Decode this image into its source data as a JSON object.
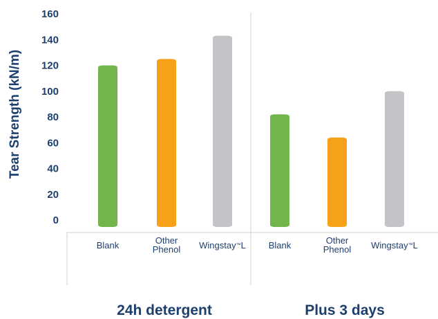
{
  "chart_data": {
    "type": "bar",
    "ylabel": "Tear Strength (kN/m)",
    "ylim": [
      0,
      160
    ],
    "yticks": [
      0,
      20,
      40,
      60,
      80,
      100,
      120,
      140,
      160
    ],
    "grid": false,
    "groups": [
      {
        "label": "24h detergent",
        "bars": [
          {
            "label": "Blank",
            "value": 120,
            "color": "#72b54b"
          },
          {
            "label": "Other\nPhenol",
            "value": 125,
            "color": "#f7a11a"
          },
          {
            "label": "Wingstay™L",
            "value": 143,
            "color": "#c4c3c8"
          }
        ]
      },
      {
        "label": "Plus 3 days",
        "bars": [
          {
            "label": "Blank",
            "value": 82,
            "color": "#72b54b"
          },
          {
            "label": "Other\nPhenol",
            "value": 64,
            "color": "#f7a11a"
          },
          {
            "label": "Wingstay™L",
            "value": 100,
            "color": "#c4c3c8"
          }
        ]
      }
    ]
  },
  "colors": {
    "text": "#1d3f6e",
    "axis": "#d0d0d0"
  }
}
